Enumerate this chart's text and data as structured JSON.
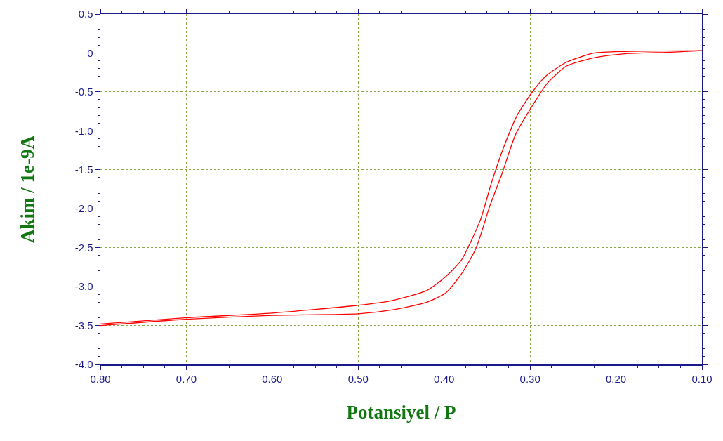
{
  "chart_data": {
    "type": "line",
    "xlabel": "Potansiyel / P",
    "ylabel": "Akim / 1e-9A",
    "xlim": [
      0.8,
      0.1
    ],
    "xticks": [
      {
        "value": 0.8,
        "label": "0.80"
      },
      {
        "value": 0.7,
        "label": "0.70"
      },
      {
        "value": 0.6,
        "label": "0.60"
      },
      {
        "value": 0.5,
        "label": "0.50"
      },
      {
        "value": 0.4,
        "label": "0.40"
      },
      {
        "value": 0.3,
        "label": "0.30"
      },
      {
        "value": 0.2,
        "label": "0.20"
      },
      {
        "value": 0.1,
        "label": "0.10"
      }
    ],
    "ylim": [
      -4.0,
      0.5
    ],
    "yticks": [
      0.5,
      0,
      -0.5,
      {
        "value": -1,
        "label": "-1.0"
      },
      -1.5,
      {
        "value": -2,
        "label": "-2.0"
      },
      -2.5,
      {
        "value": -3,
        "label": "-3.0"
      },
      -3.5,
      {
        "value": -4,
        "label": "-4.0"
      }
    ],
    "grid": true,
    "line_style": "solid",
    "marker": "none",
    "series": [
      {
        "color": "#ff0000",
        "x": [
          0.8,
          0.7,
          0.6,
          0.5,
          0.461,
          0.42,
          0.398,
          0.38,
          0.358,
          0.345,
          0.331,
          0.315,
          0.298,
          0.282,
          0.258,
          0.225,
          0.19,
          0.1
        ],
        "values": [
          -3.48,
          -3.4,
          -3.34,
          -3.24,
          -3.18,
          -3.05,
          -2.87,
          -2.66,
          -2.15,
          -1.67,
          -1.22,
          -0.8,
          -0.51,
          -0.3,
          -0.12,
          0.0,
          0.02,
          0.03
        ]
      },
      {
        "color": "#ff0000",
        "x": [
          0.8,
          0.7,
          0.6,
          0.5,
          0.461,
          0.42,
          0.398,
          0.38,
          0.363,
          0.347,
          0.333,
          0.317,
          0.298,
          0.28,
          0.258,
          0.225,
          0.19,
          0.136,
          0.1
        ],
        "values": [
          -3.5,
          -3.42,
          -3.37,
          -3.35,
          -3.3,
          -3.2,
          -3.08,
          -2.84,
          -2.51,
          -1.97,
          -1.56,
          -1.05,
          -0.69,
          -0.39,
          -0.17,
          -0.06,
          -0.01,
          0.01,
          0.03
        ]
      }
    ]
  }
}
